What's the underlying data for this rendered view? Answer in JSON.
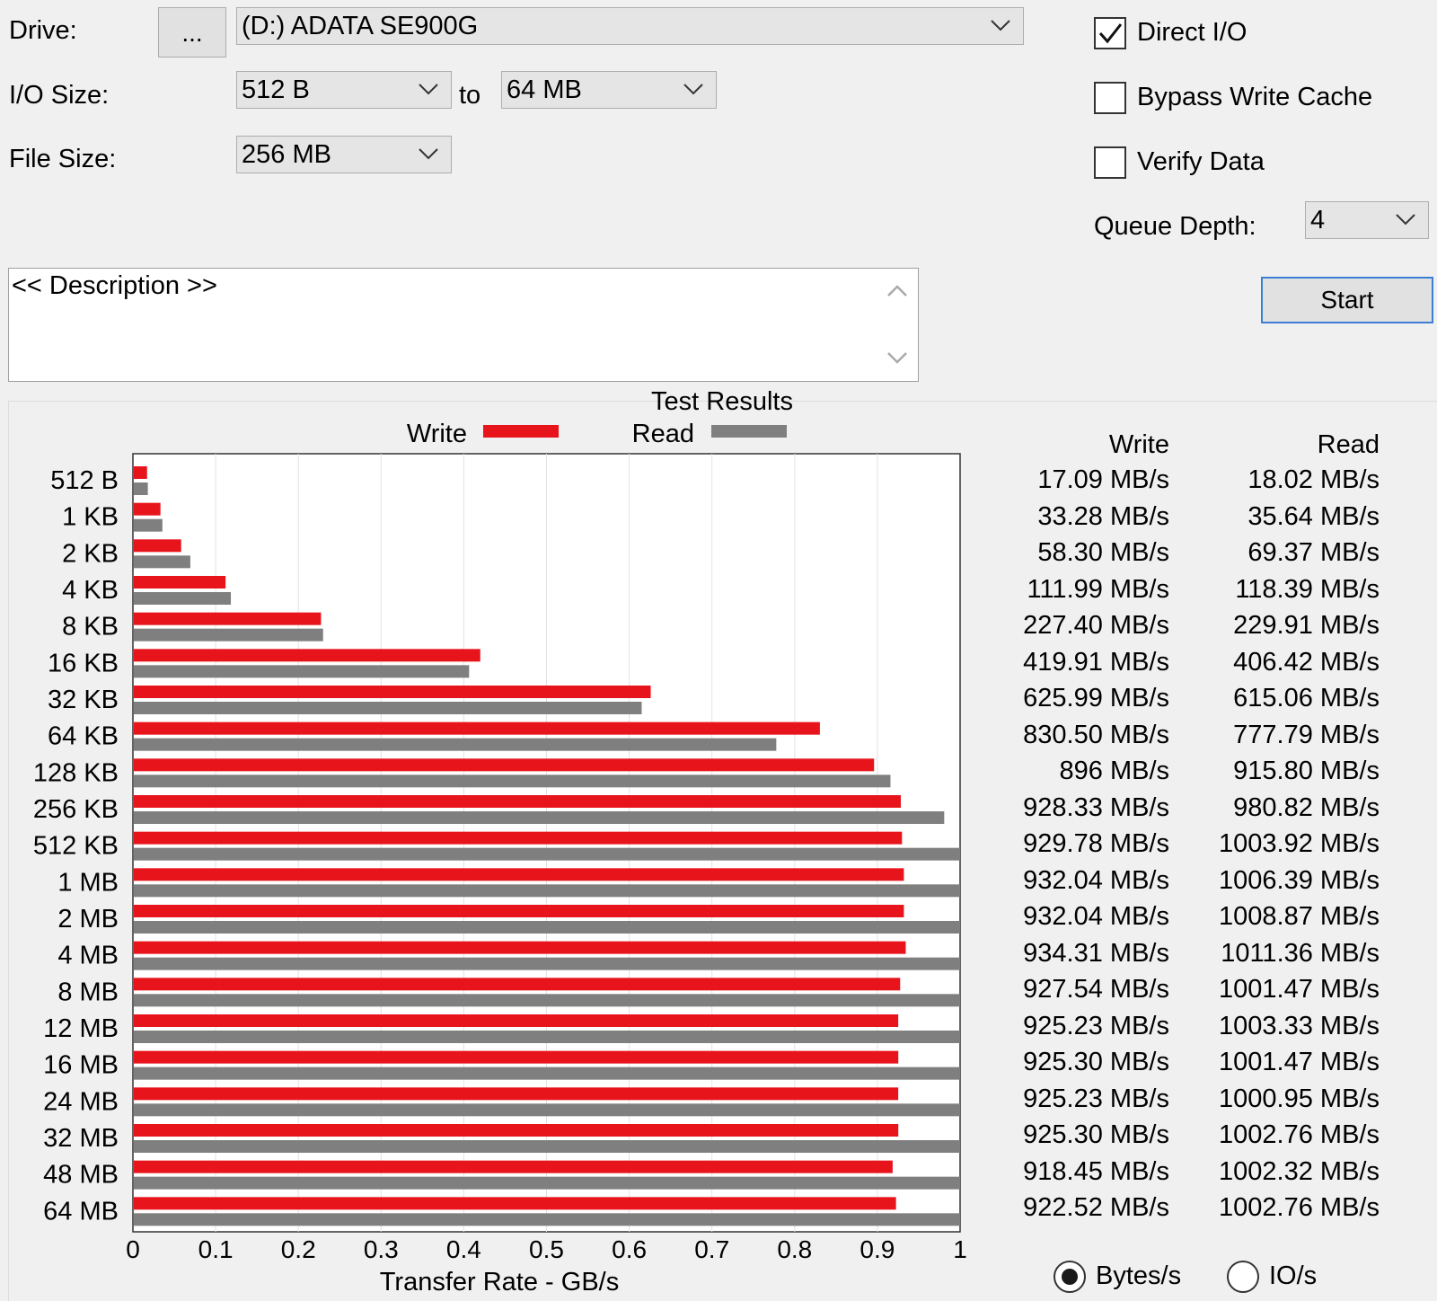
{
  "settings": {
    "drive_label": "Drive:",
    "browse_label": "...",
    "drive_value": "(D:) ADATA SE900G",
    "io_size_label": "I/O Size:",
    "io_from": "512 B",
    "to_label": "to",
    "io_to": "64 MB",
    "file_size_label": "File Size:",
    "file_size": "256 MB",
    "direct_io_label": "Direct I/O",
    "direct_io_checked": true,
    "bypass_label": "Bypass Write Cache",
    "bypass_checked": false,
    "verify_label": "Verify Data",
    "verify_checked": false,
    "queue_label": "Queue Depth:",
    "queue_value": "4",
    "start_label": "Start",
    "description": "<< Description >>"
  },
  "results": {
    "write_header": "Write",
    "read_header": "Read",
    "unit_bytes_label": "Bytes/s",
    "unit_io_label": "IO/s",
    "selected_unit": "Bytes/s",
    "rows": [
      {
        "size": "512 B",
        "write": "17.09 MB/s",
        "read": "18.02 MB/s"
      },
      {
        "size": "1 KB",
        "write": "33.28 MB/s",
        "read": "35.64 MB/s"
      },
      {
        "size": "2 KB",
        "write": "58.30 MB/s",
        "read": "69.37 MB/s"
      },
      {
        "size": "4 KB",
        "write": "111.99 MB/s",
        "read": "118.39 MB/s"
      },
      {
        "size": "8 KB",
        "write": "227.40 MB/s",
        "read": "229.91 MB/s"
      },
      {
        "size": "16 KB",
        "write": "419.91 MB/s",
        "read": "406.42 MB/s"
      },
      {
        "size": "32 KB",
        "write": "625.99 MB/s",
        "read": "615.06 MB/s"
      },
      {
        "size": "64 KB",
        "write": "830.50 MB/s",
        "read": "777.79 MB/s"
      },
      {
        "size": "128 KB",
        "write": "896 MB/s",
        "read": "915.80 MB/s"
      },
      {
        "size": "256 KB",
        "write": "928.33 MB/s",
        "read": "980.82 MB/s"
      },
      {
        "size": "512 KB",
        "write": "929.78 MB/s",
        "read": "1003.92 MB/s"
      },
      {
        "size": "1 MB",
        "write": "932.04 MB/s",
        "read": "1006.39 MB/s"
      },
      {
        "size": "2 MB",
        "write": "932.04 MB/s",
        "read": "1008.87 MB/s"
      },
      {
        "size": "4 MB",
        "write": "934.31 MB/s",
        "read": "1011.36 MB/s"
      },
      {
        "size": "8 MB",
        "write": "927.54 MB/s",
        "read": "1001.47 MB/s"
      },
      {
        "size": "12 MB",
        "write": "925.23 MB/s",
        "read": "1003.33 MB/s"
      },
      {
        "size": "16 MB",
        "write": "925.30 MB/s",
        "read": "1001.47 MB/s"
      },
      {
        "size": "24 MB",
        "write": "925.23 MB/s",
        "read": "1000.95 MB/s"
      },
      {
        "size": "32 MB",
        "write": "925.30 MB/s",
        "read": "1002.76 MB/s"
      },
      {
        "size": "48 MB",
        "write": "918.45 MB/s",
        "read": "1002.32 MB/s"
      },
      {
        "size": "64 MB",
        "write": "922.52 MB/s",
        "read": "1002.76 MB/s"
      }
    ]
  },
  "chart_data": {
    "type": "bar",
    "orientation": "horizontal",
    "title": "Test Results",
    "xlabel": "Transfer Rate - GB/s",
    "ylabel": "",
    "xlim": [
      0,
      1
    ],
    "xticks": [
      "0",
      "0.1",
      "0.2",
      "0.3",
      "0.4",
      "0.5",
      "0.6",
      "0.7",
      "0.8",
      "0.9",
      "1"
    ],
    "grid": true,
    "legend": "top",
    "categories": [
      "512 B",
      "1 KB",
      "2 KB",
      "4 KB",
      "8 KB",
      "16 KB",
      "32 KB",
      "64 KB",
      "128 KB",
      "256 KB",
      "512 KB",
      "1 MB",
      "2 MB",
      "4 MB",
      "8 MB",
      "12 MB",
      "16 MB",
      "24 MB",
      "32 MB",
      "48 MB",
      "64 MB"
    ],
    "series": [
      {
        "name": "Write",
        "color": "#e8141c",
        "values": [
          0.01709,
          0.03328,
          0.0583,
          0.11199,
          0.2274,
          0.41991,
          0.62599,
          0.8305,
          0.896,
          0.92833,
          0.92978,
          0.93204,
          0.93204,
          0.93431,
          0.92754,
          0.92523,
          0.9253,
          0.92523,
          0.9253,
          0.91845,
          0.92252
        ]
      },
      {
        "name": "Read",
        "color": "#7f7f7f",
        "values": [
          0.01802,
          0.03564,
          0.06937,
          0.11839,
          0.22991,
          0.40642,
          0.61506,
          0.77779,
          0.9158,
          0.98082,
          1.00392,
          1.00639,
          1.00887,
          1.01136,
          1.00147,
          1.00333,
          1.00147,
          1.00095,
          1.00276,
          1.00232,
          1.00276
        ]
      }
    ]
  }
}
